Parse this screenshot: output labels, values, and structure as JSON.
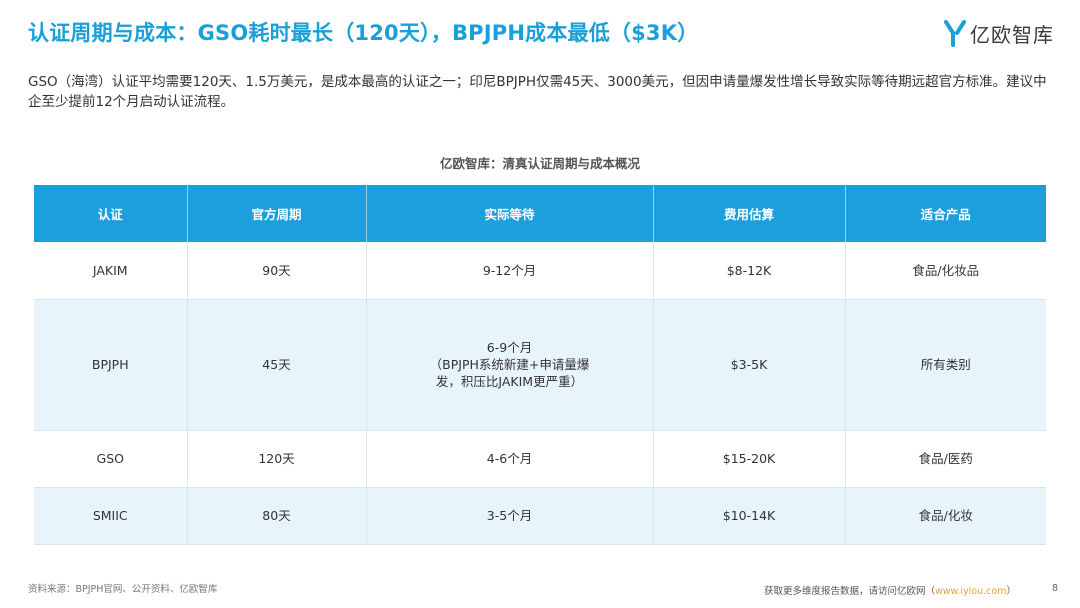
{
  "header": {
    "title": "认证周期与成本：GSO耗时最长（120天），BPJPH成本最低（$3K）",
    "logo_text": "亿欧智库"
  },
  "intro": "GSO（海湾）认证平均需要120天、1.5万美元，是成本最高的认证之一；印尼BPJPH仅需45天、3000美元，但因申请量爆发性增长导致实际等待期远超官方标准。建议中企至少提前12个月启动认证流程。",
  "table": {
    "caption": "亿欧智库：清真认证周期与成本概况",
    "headers": [
      "认证",
      "官方周期",
      "实际等待",
      "费用估算",
      "适合产品"
    ],
    "rows": [
      [
        "JAKIM",
        "90天",
        "9-12个月",
        "$8-12K",
        "食品/化妆品"
      ],
      [
        "BPJPH",
        "45天",
        "6-9个月",
        "$3-5K",
        "所有类别"
      ],
      [
        "GSO",
        "120天",
        "4-6个月",
        "$15-20K",
        "食品/医药"
      ],
      [
        "SMIIC",
        "80天",
        "3-5个月",
        "$10-14K",
        "食品/化妆"
      ]
    ],
    "bpjph_wait_note": "（BPJPH系统新建+申请量爆发，积压比JAKIM更严重）"
  },
  "footer": {
    "source": "资料来源：BPJPH官网、公开资料、亿欧智库",
    "more_text": "获取更多维度报告数据，请访问亿欧网",
    "link_open": "（",
    "link": "www.iyiou.com",
    "link_close": "）",
    "page_number": "8"
  },
  "colors": {
    "title": "#1a9fd8",
    "table_header": "#1c9fdc",
    "row_tint": "#e8f4fc",
    "logo_accent": "#1a9fd8",
    "link": "#e8a33a"
  },
  "icons": {
    "logo": "yiou-logo-icon"
  }
}
